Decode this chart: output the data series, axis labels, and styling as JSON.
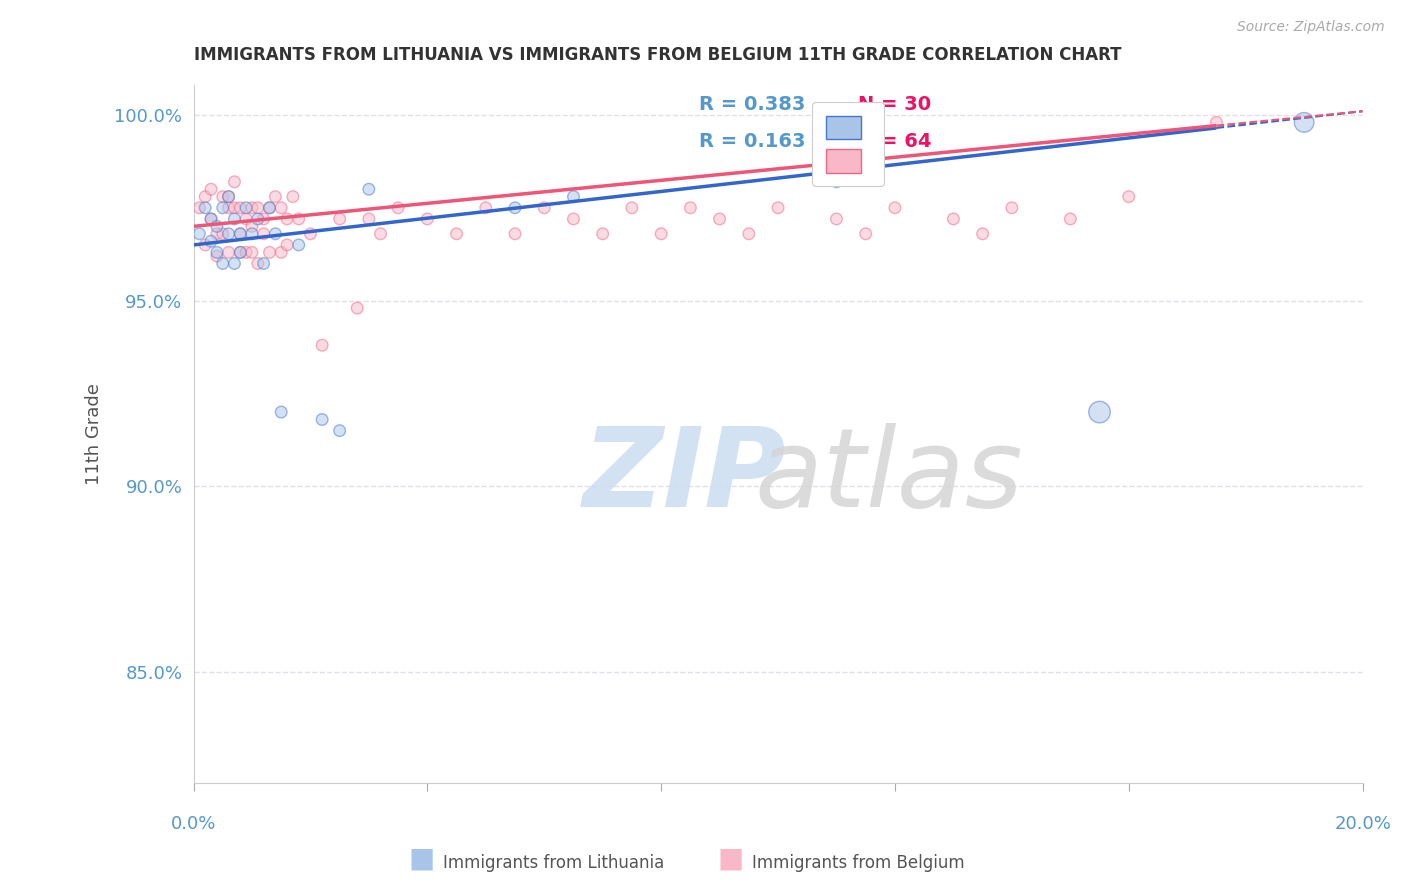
{
  "title": "IMMIGRANTS FROM LITHUANIA VS IMMIGRANTS FROM BELGIUM 11TH GRADE CORRELATION CHART",
  "source": "Source: ZipAtlas.com",
  "ylabel": "11th Grade",
  "xlim": [
    0.0,
    0.2
  ],
  "ylim": [
    0.82,
    1.008
  ],
  "yticks": [
    0.85,
    0.9,
    0.95,
    1.0
  ],
  "ytick_labels": [
    "85.0%",
    "90.0%",
    "95.0%",
    "100.0%"
  ],
  "background_color": "#ffffff",
  "grid_color": "#e0e0e8",
  "blue_fill": "#a8c4e8",
  "blue_edge": "#4477cc",
  "pink_fill": "#f8b8c8",
  "pink_edge": "#ee6688",
  "blue_line": "#3366cc",
  "pink_line": "#ee5577",
  "axis_color": "#5599cc",
  "title_color": "#333333",
  "scatter_alpha": 0.5,
  "lith_line_x0": 0.0,
  "lith_line_y0": 0.965,
  "lith_line_x1": 0.2,
  "lith_line_y1": 1.001,
  "belg_line_x0": 0.0,
  "belg_line_y0": 0.97,
  "belg_line_x1": 0.2,
  "belg_line_y1": 1.001,
  "lithuania_x": [
    0.001,
    0.002,
    0.003,
    0.003,
    0.004,
    0.004,
    0.005,
    0.005,
    0.006,
    0.006,
    0.007,
    0.007,
    0.008,
    0.008,
    0.009,
    0.01,
    0.011,
    0.012,
    0.013,
    0.014,
    0.015,
    0.018,
    0.022,
    0.025,
    0.03,
    0.055,
    0.065,
    0.11,
    0.155,
    0.19
  ],
  "lithuania_y": [
    0.968,
    0.975,
    0.972,
    0.966,
    0.97,
    0.963,
    0.975,
    0.96,
    0.968,
    0.978,
    0.972,
    0.96,
    0.968,
    0.963,
    0.975,
    0.968,
    0.972,
    0.96,
    0.975,
    0.968,
    0.92,
    0.965,
    0.918,
    0.915,
    0.98,
    0.975,
    0.978,
    0.982,
    0.92,
    0.998
  ],
  "lithuania_sizes": [
    70,
    70,
    70,
    70,
    70,
    70,
    70,
    70,
    70,
    70,
    70,
    70,
    70,
    70,
    70,
    70,
    70,
    70,
    70,
    70,
    70,
    70,
    70,
    70,
    70,
    70,
    70,
    70,
    240,
    200
  ],
  "belgium_x": [
    0.001,
    0.002,
    0.002,
    0.003,
    0.003,
    0.004,
    0.004,
    0.005,
    0.005,
    0.006,
    0.006,
    0.006,
    0.007,
    0.007,
    0.008,
    0.008,
    0.008,
    0.009,
    0.009,
    0.01,
    0.01,
    0.01,
    0.011,
    0.011,
    0.012,
    0.012,
    0.013,
    0.013,
    0.014,
    0.015,
    0.015,
    0.016,
    0.016,
    0.017,
    0.018,
    0.02,
    0.022,
    0.025,
    0.028,
    0.03,
    0.032,
    0.035,
    0.04,
    0.045,
    0.05,
    0.055,
    0.06,
    0.065,
    0.07,
    0.075,
    0.08,
    0.085,
    0.09,
    0.095,
    0.1,
    0.11,
    0.115,
    0.12,
    0.13,
    0.135,
    0.14,
    0.15,
    0.16,
    0.175
  ],
  "belgium_y": [
    0.975,
    0.978,
    0.965,
    0.98,
    0.972,
    0.968,
    0.962,
    0.978,
    0.968,
    0.975,
    0.978,
    0.963,
    0.975,
    0.982,
    0.968,
    0.975,
    0.963,
    0.972,
    0.963,
    0.975,
    0.97,
    0.963,
    0.975,
    0.96,
    0.972,
    0.968,
    0.975,
    0.963,
    0.978,
    0.975,
    0.963,
    0.972,
    0.965,
    0.978,
    0.972,
    0.968,
    0.938,
    0.972,
    0.948,
    0.972,
    0.968,
    0.975,
    0.972,
    0.968,
    0.975,
    0.968,
    0.975,
    0.972,
    0.968,
    0.975,
    0.968,
    0.975,
    0.972,
    0.968,
    0.975,
    0.972,
    0.968,
    0.975,
    0.972,
    0.968,
    0.975,
    0.972,
    0.978,
    0.998
  ],
  "belgium_sizes": [
    70,
    70,
    70,
    70,
    70,
    70,
    70,
    70,
    70,
    70,
    70,
    70,
    70,
    70,
    70,
    70,
    70,
    70,
    70,
    70,
    70,
    70,
    70,
    70,
    70,
    70,
    70,
    70,
    70,
    70,
    70,
    70,
    70,
    70,
    70,
    70,
    70,
    70,
    70,
    70,
    70,
    70,
    70,
    70,
    70,
    70,
    70,
    70,
    70,
    70,
    70,
    70,
    70,
    70,
    70,
    70,
    70,
    70,
    70,
    70,
    70,
    70,
    70,
    70
  ]
}
